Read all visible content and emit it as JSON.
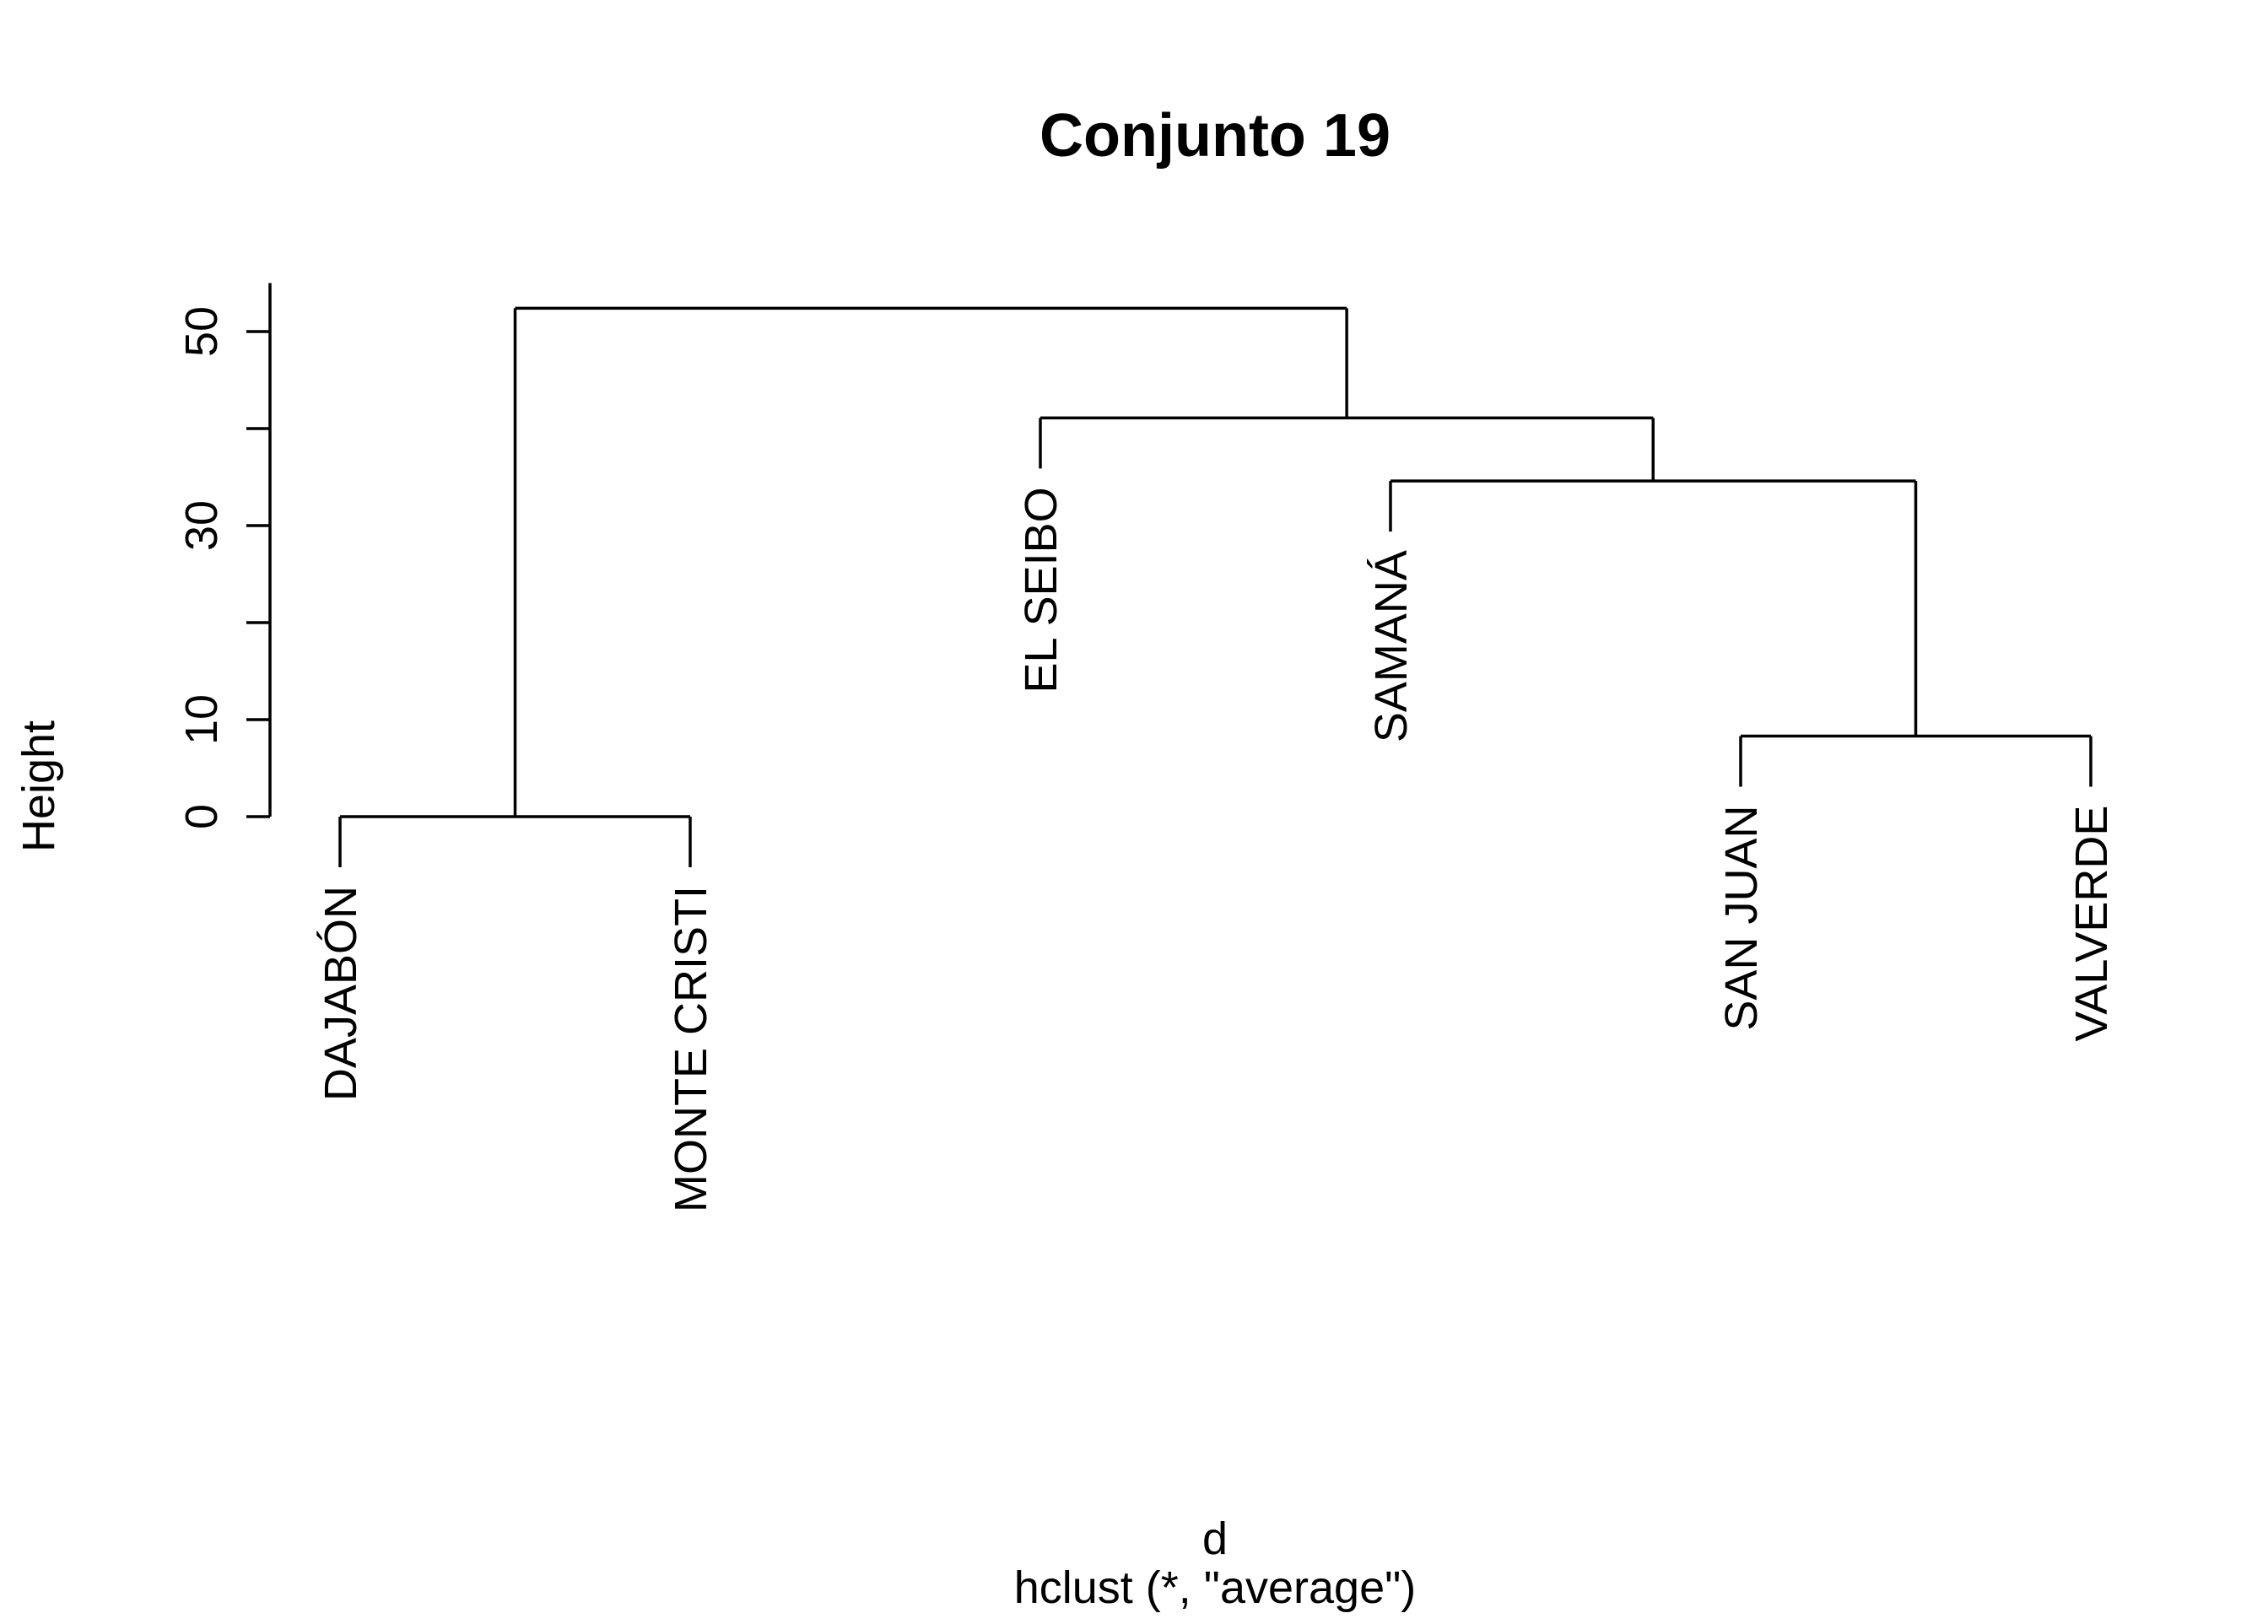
{
  "chart_data": {
    "type": "dendrogram",
    "title": "Conjunto 19",
    "xlabel": "d",
    "sublabel": "hclust (*, \"average\")",
    "ylabel": "Height",
    "ylim": [
      0,
      55
    ],
    "yticks": [
      0,
      10,
      20,
      30,
      40,
      50
    ],
    "ytick_labels": [
      "0",
      "10",
      "",
      "30",
      "",
      "50"
    ],
    "leaves": [
      "DAJABÓN",
      "MONTE CRISTI",
      "EL SEIBO",
      "SAMANÁ",
      "SAN JUAN",
      "VALVERDE"
    ],
    "merges": [
      {
        "left": "DAJABÓN",
        "right": "MONTE CRISTI",
        "height": 0
      },
      {
        "left": "SAN JUAN",
        "right": "VALVERDE",
        "height": 8.3
      },
      {
        "left": "SAMANÁ",
        "right": "SAN JUAN+VALVERDE",
        "height": 34.6
      },
      {
        "left": "EL SEIBO",
        "right": "SAMANÁ+SAN JUAN+VALVERDE",
        "height": 41.1
      },
      {
        "left": "DAJABÓN+MONTE CRISTI",
        "right": "EL SEIBO+SAMANÁ+SAN JUAN+VALVERDE",
        "height": 52.4
      }
    ],
    "line_color": "#000000",
    "background": "#ffffff"
  }
}
